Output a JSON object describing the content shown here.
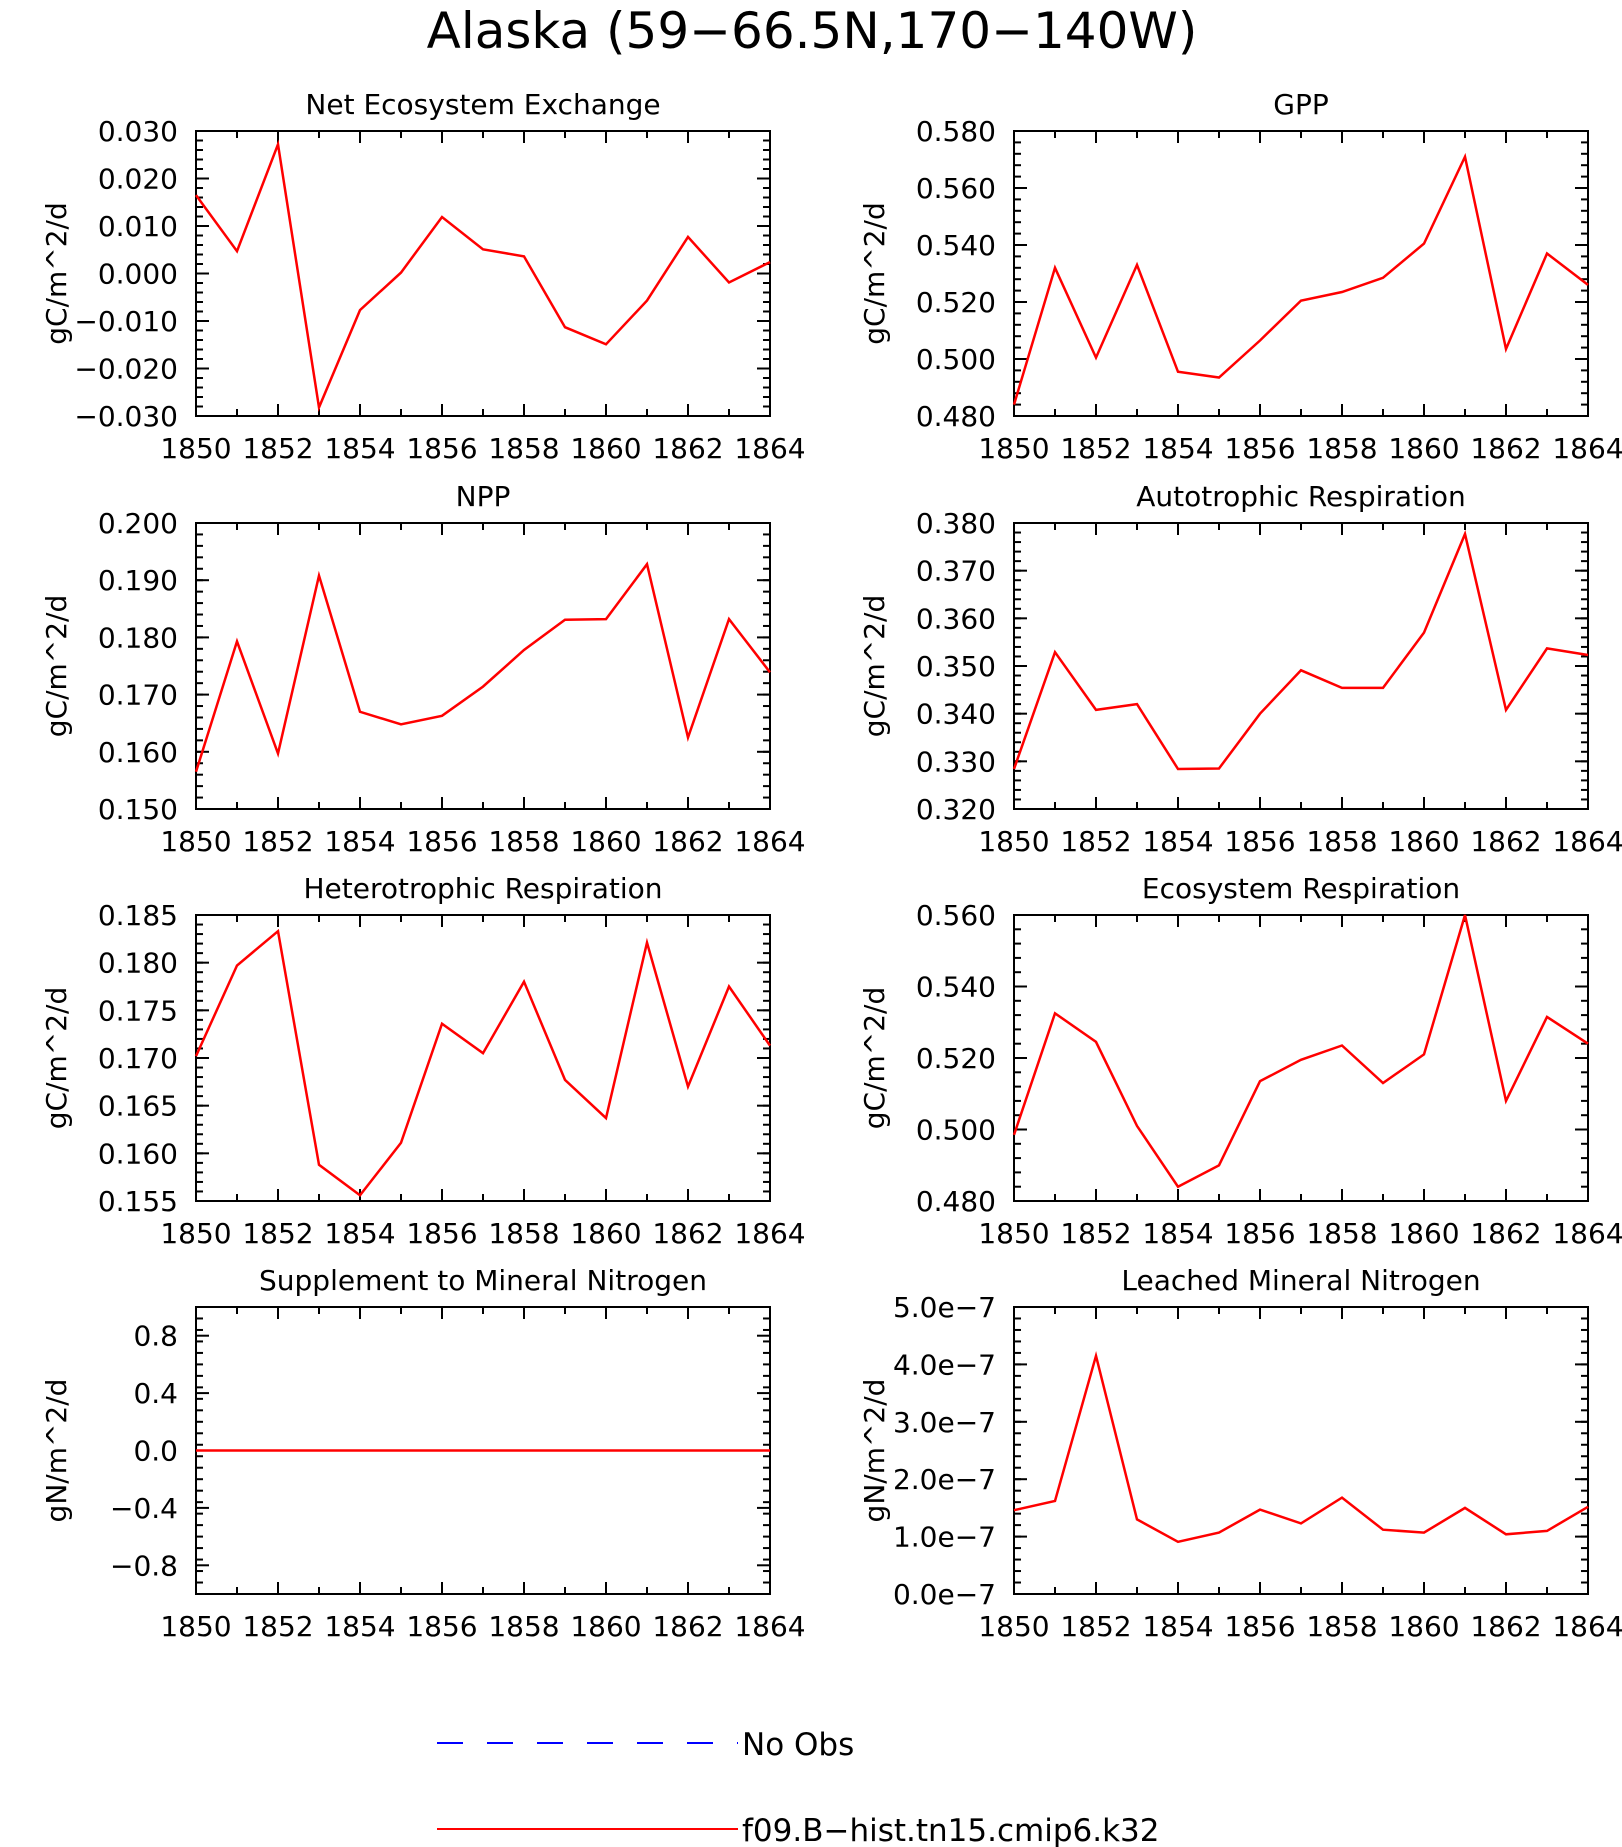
{
  "title": "Alaska (59−66.5N,170−140W)",
  "legend": {
    "entries": [
      {
        "label": "No Obs",
        "color": "#0000ff",
        "style": "dashed"
      },
      {
        "label": "f09.B−hist.tn15.cmip6.k32",
        "color": "#ff0000",
        "style": "solid"
      }
    ]
  },
  "chart_data": [
    {
      "type": "line",
      "title": "Net Ecosystem Exchange",
      "ylabel": "gC/m^2/d",
      "x": [
        1850,
        1851,
        1852,
        1853,
        1854,
        1855,
        1856,
        1857,
        1858,
        1859,
        1860,
        1861,
        1862,
        1863,
        1864
      ],
      "xlim": [
        1850,
        1864
      ],
      "ylim": [
        -0.03,
        0.03
      ],
      "xticks": [
        "1850",
        "1852",
        "1854",
        "1856",
        "1858",
        "1860",
        "1862",
        "1864"
      ],
      "yticks": [
        -0.03,
        -0.02,
        -0.01,
        0.0,
        0.01,
        0.02,
        0.03
      ],
      "yticklabels": [
        "−0.030",
        "−0.020",
        "−0.010",
        "0.000",
        "0.010",
        "0.020",
        "0.030"
      ],
      "series": [
        {
          "color": "#ff0000",
          "values": [
            0.0165,
            0.0047,
            0.0272,
            -0.0282,
            -0.0077,
            0.0002,
            0.0119,
            0.0051,
            0.0036,
            -0.0113,
            -0.0149,
            -0.0057,
            0.0077,
            -0.0019,
            0.0024
          ]
        }
      ]
    },
    {
      "type": "line",
      "title": "GPP",
      "ylabel": "gC/m^2/d",
      "x": [
        1850,
        1851,
        1852,
        1853,
        1854,
        1855,
        1856,
        1857,
        1858,
        1859,
        1860,
        1861,
        1862,
        1863,
        1864
      ],
      "xlim": [
        1850,
        1864
      ],
      "ylim": [
        0.48,
        0.58
      ],
      "xticks": [
        "1850",
        "1852",
        "1854",
        "1856",
        "1858",
        "1860",
        "1862",
        "1864"
      ],
      "yticks": [
        0.48,
        0.5,
        0.52,
        0.54,
        0.56,
        0.58
      ],
      "yticklabels": [
        "0.480",
        "0.500",
        "0.520",
        "0.540",
        "0.560",
        "0.580"
      ],
      "series": [
        {
          "color": "#ff0000",
          "values": [
            0.484,
            0.532,
            0.5005,
            0.533,
            0.4955,
            0.4935,
            0.5065,
            0.5205,
            0.5235,
            0.5285,
            0.5405,
            0.571,
            0.5035,
            0.537,
            0.526
          ]
        }
      ]
    },
    {
      "type": "line",
      "title": "NPP",
      "ylabel": "gC/m^2/d",
      "x": [
        1850,
        1851,
        1852,
        1853,
        1854,
        1855,
        1856,
        1857,
        1858,
        1859,
        1860,
        1861,
        1862,
        1863,
        1864
      ],
      "xlim": [
        1850,
        1864
      ],
      "ylim": [
        0.15,
        0.2
      ],
      "xticks": [
        "1850",
        "1852",
        "1854",
        "1856",
        "1858",
        "1860",
        "1862",
        "1864"
      ],
      "yticks": [
        0.15,
        0.16,
        0.17,
        0.18,
        0.19,
        0.2
      ],
      "yticklabels": [
        "0.150",
        "0.160",
        "0.170",
        "0.180",
        "0.190",
        "0.200"
      ],
      "series": [
        {
          "color": "#ff0000",
          "values": [
            0.1565,
            0.1793,
            0.1597,
            0.1908,
            0.167,
            0.1648,
            0.1663,
            0.1714,
            0.1778,
            0.1831,
            0.1832,
            0.1928,
            0.1625,
            0.1832,
            0.1739
          ]
        }
      ]
    },
    {
      "type": "line",
      "title": "Autotrophic Respiration",
      "ylabel": "gC/m^2/d",
      "x": [
        1850,
        1851,
        1852,
        1853,
        1854,
        1855,
        1856,
        1857,
        1858,
        1859,
        1860,
        1861,
        1862,
        1863,
        1864
      ],
      "xlim": [
        1850,
        1864
      ],
      "ylim": [
        0.32,
        0.38
      ],
      "xticks": [
        "1850",
        "1852",
        "1854",
        "1856",
        "1858",
        "1860",
        "1862",
        "1864"
      ],
      "yticks": [
        0.32,
        0.33,
        0.34,
        0.35,
        0.36,
        0.37,
        0.38
      ],
      "yticklabels": [
        "0.320",
        "0.330",
        "0.340",
        "0.350",
        "0.360",
        "0.370",
        "0.380"
      ],
      "series": [
        {
          "color": "#ff0000",
          "values": [
            0.3284,
            0.3529,
            0.3408,
            0.342,
            0.3284,
            0.3285,
            0.34,
            0.3491,
            0.3454,
            0.3454,
            0.357,
            0.3777,
            0.3408,
            0.3537,
            0.3523
          ]
        }
      ]
    },
    {
      "type": "line",
      "title": "Heterotrophic Respiration",
      "ylabel": "gC/m^2/d",
      "x": [
        1850,
        1851,
        1852,
        1853,
        1854,
        1855,
        1856,
        1857,
        1858,
        1859,
        1860,
        1861,
        1862,
        1863,
        1864
      ],
      "xlim": [
        1850,
        1864
      ],
      "ylim": [
        0.155,
        0.185
      ],
      "xticks": [
        "1850",
        "1852",
        "1854",
        "1856",
        "1858",
        "1860",
        "1862",
        "1864"
      ],
      "yticks": [
        0.155,
        0.16,
        0.165,
        0.17,
        0.175,
        0.18,
        0.185
      ],
      "yticklabels": [
        "0.155",
        "0.160",
        "0.165",
        "0.170",
        "0.175",
        "0.180",
        "0.185"
      ],
      "series": [
        {
          "color": "#ff0000",
          "values": [
            0.1702,
            0.1797,
            0.1833,
            0.1588,
            0.1556,
            0.1611,
            0.1736,
            0.1705,
            0.178,
            0.1677,
            0.1637,
            0.1821,
            0.167,
            0.1775,
            0.1713
          ]
        }
      ]
    },
    {
      "type": "line",
      "title": "Ecosystem Respiration",
      "ylabel": "gC/m^2/d",
      "x": [
        1850,
        1851,
        1852,
        1853,
        1854,
        1855,
        1856,
        1857,
        1858,
        1859,
        1860,
        1861,
        1862,
        1863,
        1864
      ],
      "xlim": [
        1850,
        1864
      ],
      "ylim": [
        0.48,
        0.56
      ],
      "xticks": [
        "1850",
        "1852",
        "1854",
        "1856",
        "1858",
        "1860",
        "1862",
        "1864"
      ],
      "yticks": [
        0.48,
        0.5,
        0.52,
        0.54,
        0.56
      ],
      "yticklabels": [
        "0.480",
        "0.500",
        "0.520",
        "0.540",
        "0.560"
      ],
      "series": [
        {
          "color": "#ff0000",
          "values": [
            0.4985,
            0.5325,
            0.5245,
            0.501,
            0.484,
            0.49,
            0.5135,
            0.5195,
            0.5235,
            0.513,
            0.521,
            0.56,
            0.508,
            0.5315,
            0.524
          ]
        }
      ]
    },
    {
      "type": "line",
      "title": "Supplement to Mineral Nitrogen",
      "ylabel": "gN/m^2/d",
      "x": [
        1850,
        1851,
        1852,
        1853,
        1854,
        1855,
        1856,
        1857,
        1858,
        1859,
        1860,
        1861,
        1862,
        1863,
        1864
      ],
      "xlim": [
        1850,
        1864
      ],
      "ylim": [
        -1.0,
        1.0
      ],
      "xticks": [
        "1850",
        "1852",
        "1854",
        "1856",
        "1858",
        "1860",
        "1862",
        "1864"
      ],
      "yticks": [
        -0.8,
        -0.4,
        0.0,
        0.4,
        0.8
      ],
      "yticklabels": [
        "−0.8",
        "−0.4",
        "0.0",
        "0.4",
        "0.8"
      ],
      "series": [
        {
          "color": "#ff0000",
          "values": [
            0,
            0,
            0,
            0,
            0,
            0,
            0,
            0,
            0,
            0,
            0,
            0,
            0,
            0,
            0
          ]
        }
      ]
    },
    {
      "type": "line",
      "title": "Leached Mineral Nitrogen",
      "ylabel": "gN/m^2/d",
      "x": [
        1850,
        1851,
        1852,
        1853,
        1854,
        1855,
        1856,
        1857,
        1858,
        1859,
        1860,
        1861,
        1862,
        1863,
        1864
      ],
      "xlim": [
        1850,
        1864
      ],
      "ylim": [
        0.0,
        5e-07
      ],
      "xticks": [
        "1850",
        "1852",
        "1854",
        "1856",
        "1858",
        "1860",
        "1862",
        "1864"
      ],
      "yticks": [
        0.0,
        1e-07,
        2e-07,
        3e-07,
        4e-07,
        5e-07
      ],
      "yticklabels": [
        "0.0e−7",
        "1.0e−7",
        "2.0e−7",
        "3.0e−7",
        "4.0e−7",
        "5.0e−7"
      ],
      "series": [
        {
          "color": "#ff0000",
          "values": [
            1.46e-07,
            1.62e-07,
            4.15e-07,
            1.3e-07,
            9.1e-08,
            1.07e-07,
            1.47e-07,
            1.23e-07,
            1.68e-07,
            1.12e-07,
            1.07e-07,
            1.5e-07,
            1.04e-07,
            1.1e-07,
            1.52e-07
          ]
        }
      ]
    }
  ]
}
